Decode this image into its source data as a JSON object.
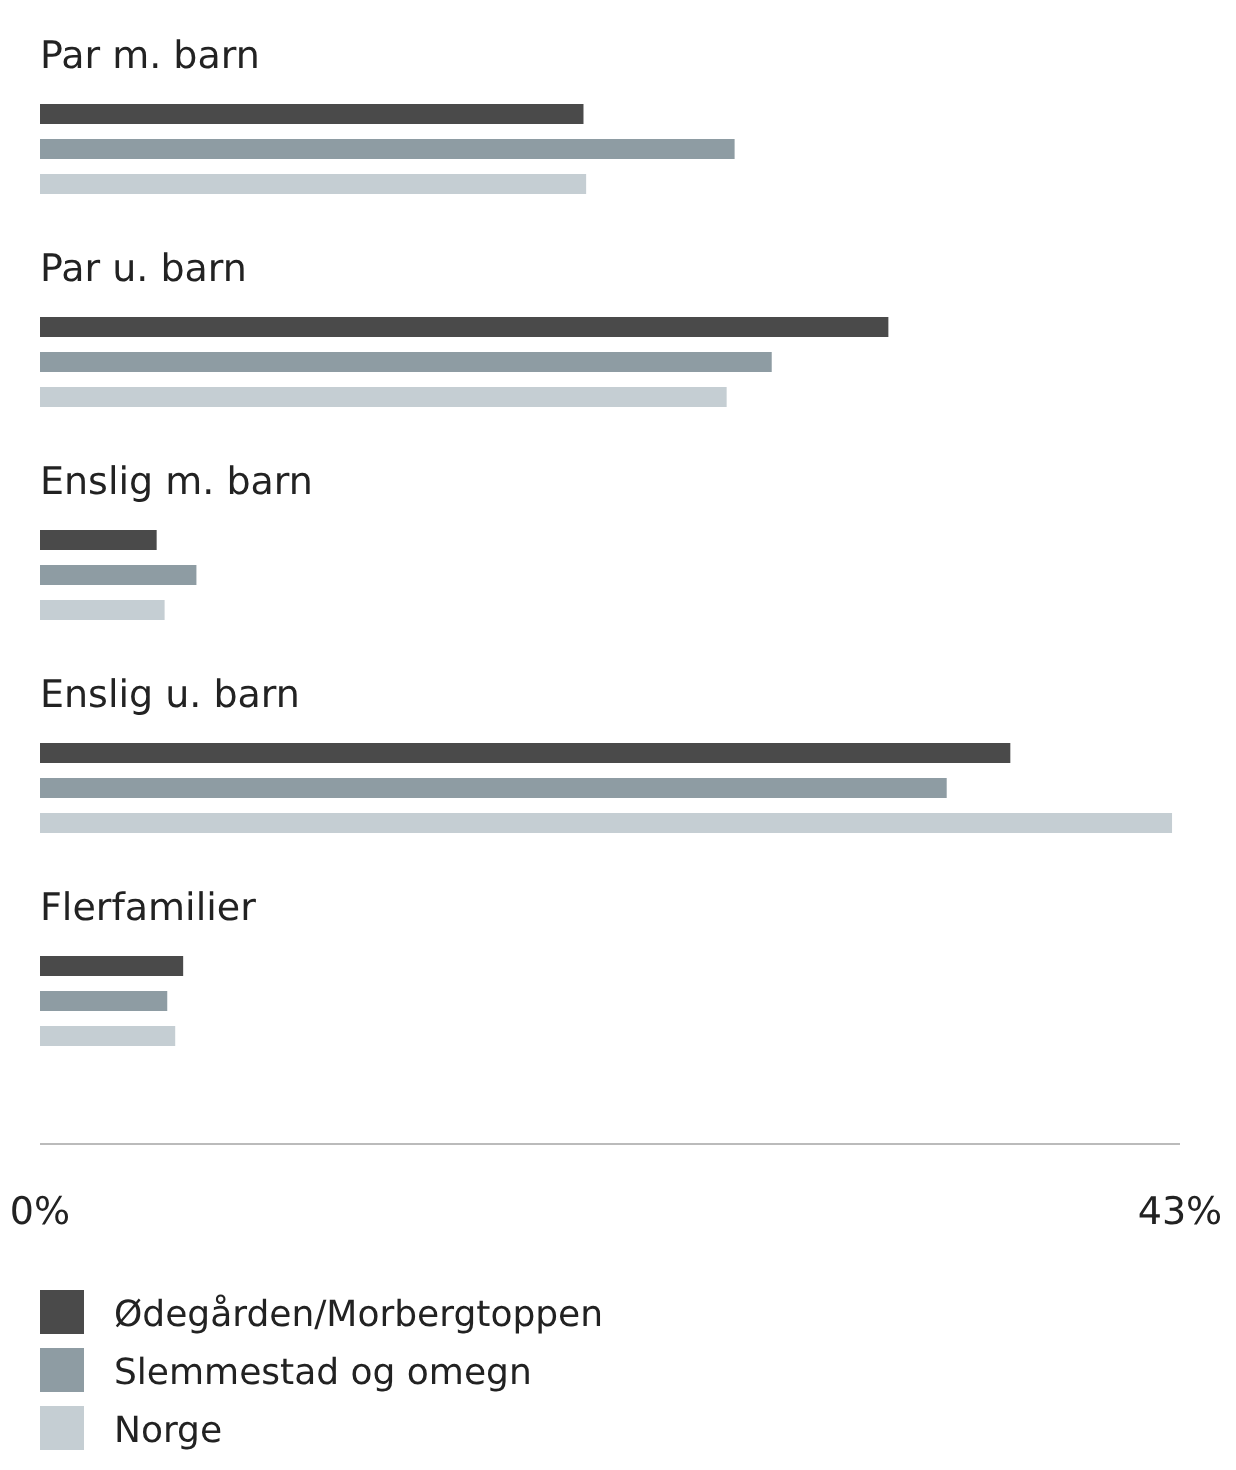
{
  "chart_data": {
    "type": "bar",
    "orientation": "horizontal",
    "categories": [
      "Par m. barn",
      "Par u. barn",
      "Enslig m. barn",
      "Enslig u. barn",
      "Flerfamilier"
    ],
    "series": [
      {
        "name": "Ødegården/Morbergtoppen",
        "color": "#4a4a4a",
        "values": [
          20.5,
          32.0,
          4.4,
          36.6,
          5.4
        ]
      },
      {
        "name": "Slemmestad og omegn",
        "color": "#8e9ca3",
        "values": [
          26.2,
          27.6,
          5.9,
          34.2,
          4.8
        ]
      },
      {
        "name": "Norge",
        "color": "#c5ced3",
        "values": [
          20.6,
          25.9,
          4.7,
          42.7,
          5.1
        ]
      }
    ],
    "xlim": [
      0,
      43
    ],
    "xticks": [
      {
        "value": 0,
        "label": "0%"
      },
      {
        "value": 43,
        "label": "43%"
      }
    ],
    "grid": false,
    "legend": "bottom"
  }
}
